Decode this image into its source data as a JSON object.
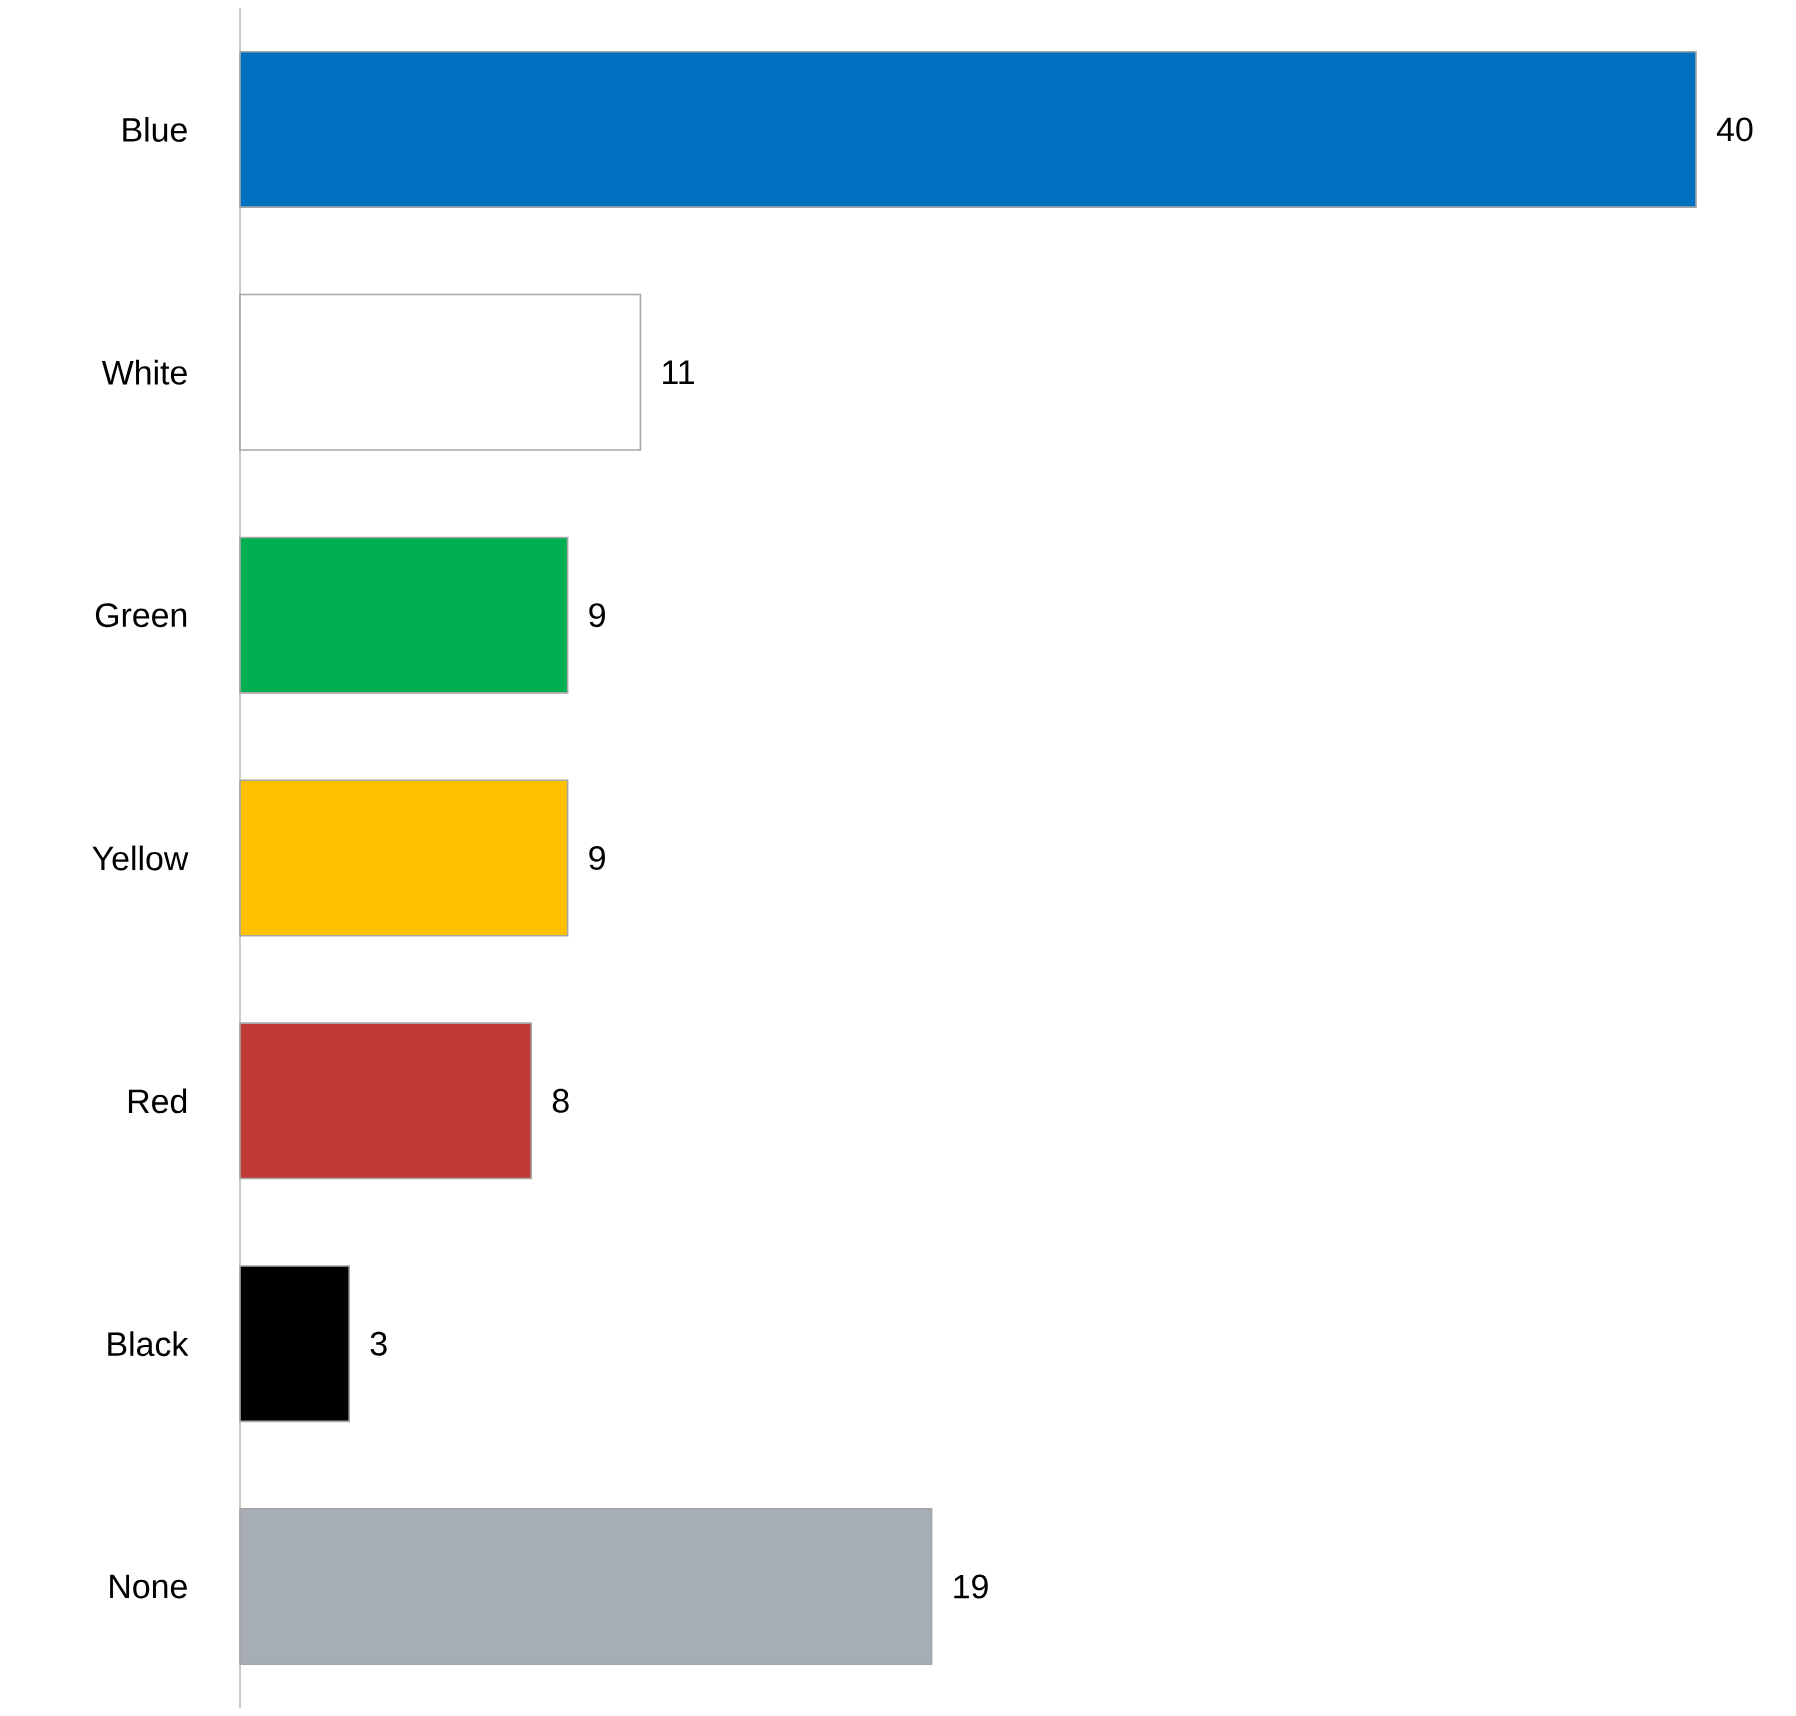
{
  "chart_data": {
    "type": "bar",
    "orientation": "horizontal",
    "data_labels": true,
    "categories": [
      "Blue",
      "White",
      "Green",
      "Yellow",
      "Red",
      "Black",
      "None"
    ],
    "values": [
      40,
      11,
      9,
      9,
      8,
      3,
      19
    ],
    "colors": [
      "#0070c0",
      "#ffffff",
      "#00b050",
      "#ffc000",
      "#c23a35",
      "#000000",
      "#a6adb4"
    ]
  }
}
